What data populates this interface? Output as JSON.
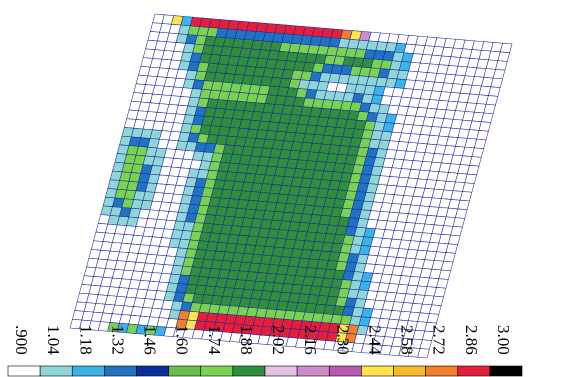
{
  "legend": {
    "tick_labels": [
      ".900",
      "1.04",
      "1.18",
      "1.32",
      "1.46",
      "1.60",
      "1.74",
      "1.88",
      "2.02",
      "2.16",
      "2.30",
      "2.44",
      "2.58",
      "2.72",
      "2.86",
      "3.00"
    ],
    "colors": [
      "#ffffff",
      "#8fd7d7",
      "#3ab3e6",
      "#1e74c2",
      "#0b2e9e",
      "#67be4a",
      "#7ad34f",
      "#2f8f3c",
      "#e4c2e4",
      "#cf8ac8",
      "#b95bb3",
      "#ffe44d",
      "#f8b92b",
      "#f57e2b",
      "#e51e3a",
      "#000000"
    ]
  },
  "mesh": {
    "mesh_color": "#1e2a9a",
    "region_colors": {
      "white": "#ffffff",
      "green": "#2f8f3c",
      "light_green": "#7ad34f",
      "cyan": "#8fd7d7",
      "blue": "#3ab3e6",
      "dark_blue": "#1e74c2",
      "red": "#e51e3a",
      "orange": "#f57e2b",
      "yellow": "#ffe44d",
      "pink": "#cf8ac8"
    }
  }
}
